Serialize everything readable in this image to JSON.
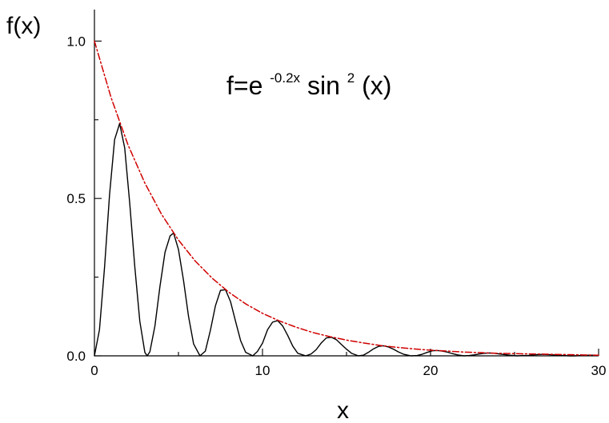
{
  "chart_data": {
    "type": "line",
    "title": "",
    "xlabel": "x",
    "ylabel": "f(x)",
    "xlim": [
      0,
      30
    ],
    "ylim": [
      0,
      1.1
    ],
    "grid": false,
    "legend": "none",
    "annotation": {
      "prefix": "f=e",
      "exponent": "-0.2x",
      "middle": "sin",
      "power": "2",
      "suffix": "(x)"
    },
    "x_major_ticks": [
      {
        "value": 0,
        "label": "0"
      },
      {
        "value": 10,
        "label": "10"
      },
      {
        "value": 20,
        "label": "20"
      },
      {
        "value": 30,
        "label": "30"
      }
    ],
    "y_major_ticks": [
      {
        "value": 0,
        "label": "0.0"
      },
      {
        "value": 0.5,
        "label": "0.5"
      },
      {
        "value": 1.0,
        "label": "1.0"
      }
    ],
    "x_minor_ticks": [
      5,
      15,
      25
    ],
    "y_minor_ticks": [
      0.25,
      0.75
    ],
    "series": [
      {
        "color": "#000000",
        "style": "solid",
        "x": [
          0,
          0.3,
          0.6,
          0.9,
          1.2,
          1.5,
          1.8,
          2.1,
          2.4,
          2.7,
          3.0,
          3.14,
          3.3,
          3.6,
          3.9,
          4.2,
          4.5,
          4.71,
          5.0,
          5.3,
          5.6,
          5.9,
          6.28,
          6.6,
          6.9,
          7.2,
          7.5,
          7.8,
          8.1,
          8.4,
          8.7,
          9.0,
          9.42,
          9.7,
          10.0,
          10.3,
          10.6,
          10.9,
          11.2,
          11.5,
          11.8,
          12.1,
          12.57,
          12.9,
          13.2,
          13.5,
          13.8,
          14.1,
          14.4,
          14.7,
          15.0,
          15.3,
          15.71,
          16.0,
          16.3,
          16.6,
          16.9,
          17.2,
          17.5,
          17.8,
          18.1,
          18.4,
          18.85,
          19.2,
          19.5,
          19.8,
          20.1,
          20.4,
          20.7,
          21.0,
          21.3,
          21.6,
          21.99,
          22.3,
          22.6,
          22.9,
          23.2,
          23.5,
          23.8,
          24.1,
          24.4,
          24.7,
          25.13,
          25.5,
          25.8,
          26.1,
          26.4,
          26.7,
          27.0,
          27.3,
          27.6,
          27.9,
          28.27,
          28.6,
          28.9,
          29.2,
          29.5,
          29.8,
          30.0
        ],
        "y": [
          0,
          0.083,
          0.28,
          0.512,
          0.687,
          0.738,
          0.661,
          0.485,
          0.284,
          0.11,
          0.011,
          0,
          0.013,
          0.095,
          0.221,
          0.329,
          0.381,
          0.39,
          0.338,
          0.24,
          0.125,
          0.038,
          0,
          0.015,
          0.081,
          0.159,
          0.208,
          0.21,
          0.172,
          0.109,
          0.048,
          0.011,
          0,
          0.014,
          0.04,
          0.083,
          0.107,
          0.112,
          0.095,
          0.065,
          0.031,
          0.008,
          0,
          0.006,
          0.02,
          0.041,
          0.057,
          0.059,
          0.051,
          0.036,
          0.021,
          0.008,
          0,
          0.002,
          0.011,
          0.022,
          0.03,
          0.032,
          0.028,
          0.021,
          0.012,
          0.005,
          0,
          0.001,
          0.005,
          0.011,
          0.016,
          0.017,
          0.015,
          0.012,
          0.007,
          0.003,
          0,
          0.001,
          0.003,
          0.006,
          0.008,
          0.009,
          0.008,
          0.006,
          0.004,
          0.002,
          0,
          0.001,
          0.001,
          0.003,
          0.004,
          0.005,
          0.004,
          0.003,
          0.002,
          0.001,
          0,
          0,
          0.001,
          0.002,
          0.002,
          0.002,
          0.002
        ]
      },
      {
        "color": "#d00000",
        "style": "dashdot",
        "x": [
          0,
          1,
          2,
          3,
          4,
          5,
          6,
          7,
          8,
          9,
          10,
          11,
          12,
          13,
          14,
          15,
          16,
          17,
          18,
          19,
          20,
          21,
          22,
          23,
          24,
          25,
          26,
          27,
          28,
          29,
          30
        ],
        "y": [
          1.0,
          0.819,
          0.67,
          0.549,
          0.449,
          0.368,
          0.301,
          0.247,
          0.202,
          0.165,
          0.135,
          0.111,
          0.091,
          0.074,
          0.061,
          0.05,
          0.041,
          0.033,
          0.027,
          0.022,
          0.018,
          0.015,
          0.012,
          0.01,
          0.008,
          0.007,
          0.006,
          0.005,
          0.004,
          0.003,
          0.002
        ]
      }
    ]
  }
}
